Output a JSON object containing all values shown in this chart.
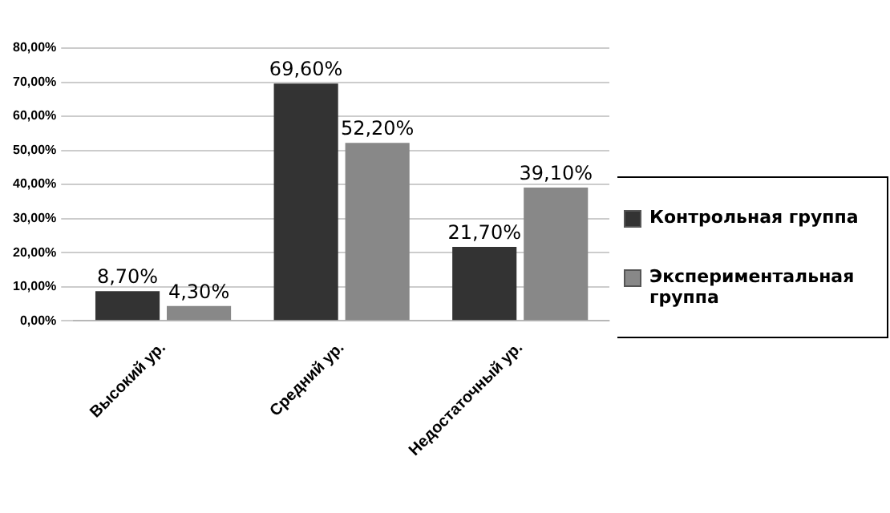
{
  "chart_data": {
    "type": "bar",
    "categories": [
      "Высокий ур.",
      "Средний ур.",
      "Недостаточный ур."
    ],
    "series": [
      {
        "name": "Контрольная группа",
        "color": "#333333",
        "values": [
          8.7,
          69.6,
          21.7
        ],
        "value_labels": [
          "8,70%",
          "69,60%",
          "21,70%"
        ]
      },
      {
        "name": "Экспериментальная группа",
        "color": "#888888",
        "values": [
          4.3,
          52.2,
          39.1
        ],
        "value_labels": [
          "4,30%",
          "52,20%",
          "39,10%"
        ]
      }
    ],
    "ylim": [
      0,
      80
    ],
    "yticks": [
      {
        "value": 0,
        "label": "0,00%"
      },
      {
        "value": 10,
        "label": "10,00%"
      },
      {
        "value": 20,
        "label": "20,00%"
      },
      {
        "value": 30,
        "label": "30,00%"
      },
      {
        "value": 40,
        "label": "40,00%"
      },
      {
        "value": 50,
        "label": "50,00%"
      },
      {
        "value": 60,
        "label": "60,00%"
      },
      {
        "value": 70,
        "label": "70,00%"
      },
      {
        "value": 80,
        "label": "80,00%"
      }
    ],
    "grid": "y",
    "legend": "right"
  }
}
